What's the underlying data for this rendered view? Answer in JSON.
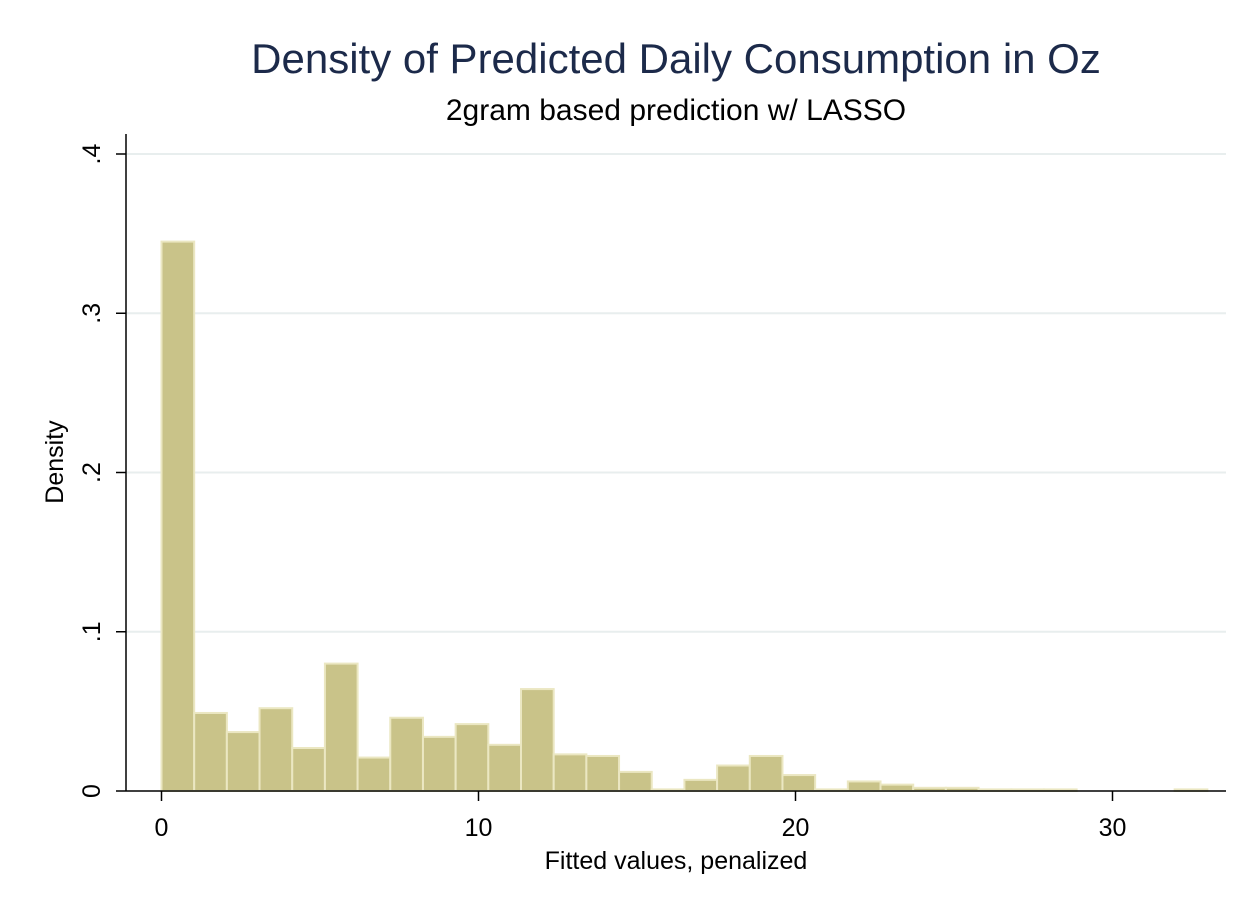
{
  "chart_data": {
    "type": "bar",
    "title": "Density of Predicted Daily Consumption in Oz",
    "subtitle": "2gram based prediction w/ LASSO",
    "xlabel": "Fitted values, penalized",
    "ylabel": "Density",
    "xlim": [
      -1,
      33.5
    ],
    "ylim": [
      0,
      0.4
    ],
    "x_ticks": [
      {
        "value": 0,
        "label": "0"
      },
      {
        "value": 10,
        "label": "10"
      },
      {
        "value": 20,
        "label": "20"
      },
      {
        "value": 30,
        "label": "30"
      }
    ],
    "y_ticks": [
      {
        "value": 0,
        "label": "0"
      },
      {
        "value": 0.1,
        "label": ".1"
      },
      {
        "value": 0.2,
        "label": ".2"
      },
      {
        "value": 0.3,
        "label": ".3"
      },
      {
        "value": 0.4,
        "label": ".4"
      }
    ],
    "grid": true,
    "bin_width": 1.031,
    "bins": [
      {
        "start": 0.0,
        "value": 0.345
      },
      {
        "start": 1.031,
        "value": 0.049
      },
      {
        "start": 2.062,
        "value": 0.037
      },
      {
        "start": 3.093,
        "value": 0.052
      },
      {
        "start": 4.124,
        "value": 0.027
      },
      {
        "start": 5.155,
        "value": 0.08
      },
      {
        "start": 6.186,
        "value": 0.021
      },
      {
        "start": 7.217,
        "value": 0.046
      },
      {
        "start": 8.248,
        "value": 0.034
      },
      {
        "start": 9.279,
        "value": 0.042
      },
      {
        "start": 10.31,
        "value": 0.029
      },
      {
        "start": 11.341,
        "value": 0.064
      },
      {
        "start": 12.372,
        "value": 0.023
      },
      {
        "start": 13.403,
        "value": 0.022
      },
      {
        "start": 14.434,
        "value": 0.012
      },
      {
        "start": 15.465,
        "value": 0.001
      },
      {
        "start": 16.496,
        "value": 0.007
      },
      {
        "start": 17.527,
        "value": 0.016
      },
      {
        "start": 18.558,
        "value": 0.022
      },
      {
        "start": 19.589,
        "value": 0.01
      },
      {
        "start": 20.62,
        "value": 0.001
      },
      {
        "start": 21.651,
        "value": 0.006
      },
      {
        "start": 22.682,
        "value": 0.004
      },
      {
        "start": 23.713,
        "value": 0.002
      },
      {
        "start": 24.744,
        "value": 0.002
      },
      {
        "start": 25.775,
        "value": 0.001
      },
      {
        "start": 26.806,
        "value": 0.001
      },
      {
        "start": 27.837,
        "value": 0.001
      },
      {
        "start": 31.961,
        "value": 0.001
      }
    ],
    "colors": {
      "bar_fill": "#c9c389",
      "bar_stroke": "#ebe7c2",
      "grid": "#e8eeee",
      "axis": "#000000",
      "title": "#1c2a4a"
    }
  }
}
